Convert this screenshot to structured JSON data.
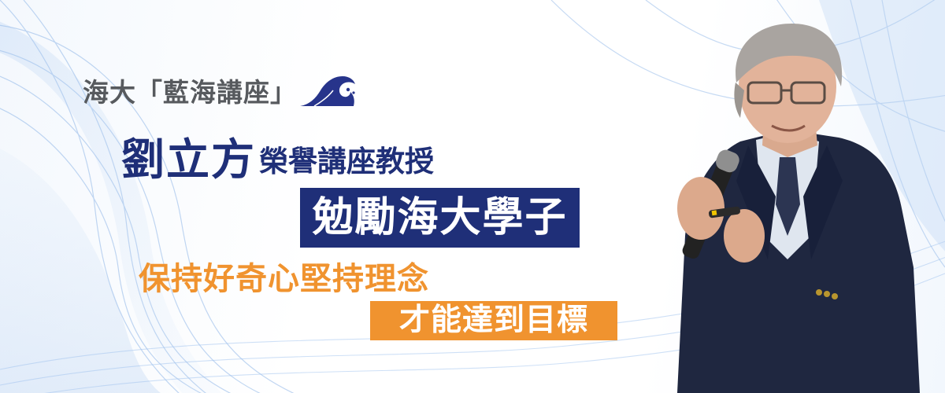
{
  "banner": {
    "series": {
      "label": "海大「藍海講座」",
      "logo_icon": "blue-wave-icon",
      "logo_color": "#27348b"
    },
    "headline": {
      "name": "劉立方",
      "honor": "榮譽講座教授"
    },
    "subtitle": "勉勵海大學子",
    "quote_line1": "保持好奇心堅持理念",
    "quote_line2": "才能達到目標",
    "colors": {
      "navy": "#1f2f78",
      "orange": "#f0932f",
      "gray_text": "#575a5e",
      "wave_blue": "#7fa9e0"
    },
    "photo": "speaker-holding-microphone"
  }
}
